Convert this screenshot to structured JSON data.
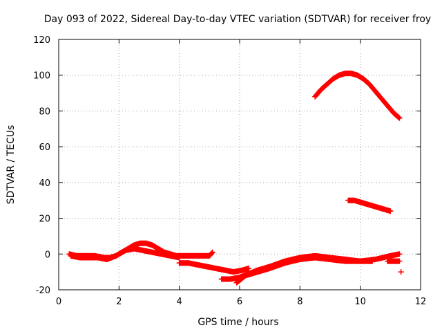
{
  "chart_data": {
    "type": "scatter",
    "title": "Day 093 of 2022, Sidereal Day-to-day VTEC variation (SDTVAR) for receiver froy",
    "xlabel": "GPS time / hours",
    "ylabel": "SDTVAR / TECUs",
    "xlim": [
      0,
      12
    ],
    "ylim": [
      -20,
      120
    ],
    "xticks": [
      "0",
      "2",
      "4",
      "6",
      "8",
      "10",
      "12"
    ],
    "yticks": [
      "-20",
      "0",
      "20",
      "40",
      "60",
      "80",
      "100",
      "120"
    ],
    "grid": true,
    "marker": "+",
    "color": "#ff0000",
    "series": [
      {
        "x": [
          0.35,
          0.6,
          0.9,
          1.2,
          1.5,
          1.7,
          1.9,
          2.1,
          2.3,
          2.5,
          2.7,
          2.9,
          3.1,
          3.3,
          3.5,
          3.7,
          3.9,
          4.1,
          4.4,
          4.7,
          5.0,
          5.1
        ],
        "y": [
          0,
          -1,
          -1,
          -1,
          -2,
          -2,
          -1,
          1,
          3,
          5,
          6,
          6,
          5,
          3,
          1,
          0,
          -1,
          -1,
          -1,
          -1,
          -1,
          1
        ]
      },
      {
        "x": [
          0.4,
          0.7,
          1.0,
          1.3,
          1.6,
          1.9,
          2.2,
          2.5,
          2.8,
          3.1,
          3.4,
          3.7,
          4.0
        ],
        "y": [
          -1,
          -2,
          -2,
          -2,
          -3,
          -1,
          2,
          3,
          2,
          1,
          0,
          -1,
          -2
        ]
      },
      {
        "x": [
          4.0,
          4.3,
          4.6,
          4.9,
          5.2,
          5.5,
          5.8,
          6.1,
          6.3
        ],
        "y": [
          -5,
          -5,
          -6,
          -7,
          -8,
          -9,
          -10,
          -9,
          -8
        ]
      },
      {
        "x": [
          5.4,
          5.7,
          6.0,
          6.3,
          6.6,
          7.0,
          7.5,
          8.0,
          8.5,
          9.0,
          9.5,
          10.0,
          10.5,
          11.0,
          11.3
        ],
        "y": [
          -14,
          -14,
          -13,
          -11,
          -9,
          -7,
          -4,
          -2,
          -1,
          -2,
          -3,
          -4,
          -3,
          -1,
          0
        ]
      },
      {
        "x": [
          5.9,
          6.2,
          6.6,
          7.0,
          7.5,
          8.0,
          8.5,
          9.0,
          9.5,
          10.0,
          10.4
        ],
        "y": [
          -16,
          -12,
          -10,
          -8,
          -5,
          -3,
          -2,
          -3,
          -4,
          -4,
          -4
        ]
      },
      {
        "x": [
          10.9,
          11.1,
          11.3
        ],
        "y": [
          -4,
          -4,
          -4
        ]
      },
      {
        "x": [
          11.35
        ],
        "y": [
          -10
        ]
      },
      {
        "x": [
          8.5,
          8.7,
          8.9,
          9.1,
          9.3,
          9.5,
          9.7,
          9.9,
          10.1,
          10.3,
          10.5,
          10.7,
          10.9,
          11.1,
          11.3
        ],
        "y": [
          88,
          92,
          95,
          98,
          100,
          101,
          101,
          100,
          98,
          95,
          91,
          87,
          83,
          79,
          76
        ]
      },
      {
        "x": [
          9.6,
          9.8,
          10.0,
          10.2,
          10.4,
          10.6,
          10.8,
          11.0
        ],
        "y": [
          30,
          30,
          29,
          28,
          27,
          26,
          25,
          24
        ]
      }
    ]
  }
}
